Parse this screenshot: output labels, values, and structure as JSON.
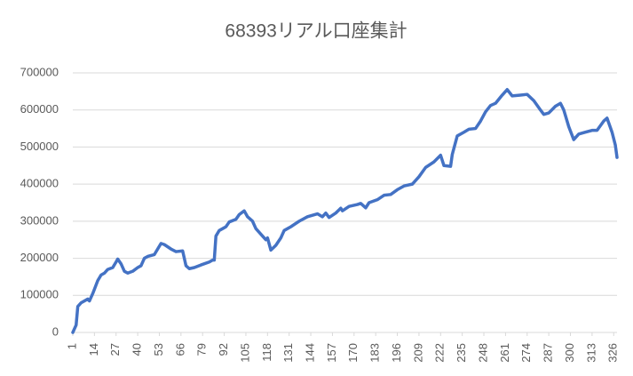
{
  "chart_data": {
    "type": "line",
    "title": "68393リアル口座集計",
    "x": [
      1,
      3,
      4,
      6,
      10,
      11,
      13,
      16,
      18,
      20,
      22,
      25,
      27,
      28,
      30,
      32,
      34,
      37,
      40,
      42,
      44,
      46,
      50,
      52,
      54,
      56,
      60,
      63,
      67,
      69,
      71,
      74,
      78,
      83,
      85,
      86,
      87,
      89,
      93,
      95,
      99,
      101,
      104,
      106,
      109,
      111,
      115,
      117,
      118,
      120,
      123,
      126,
      128,
      132,
      137,
      142,
      148,
      151,
      153,
      155,
      159,
      162,
      163,
      167,
      172,
      174,
      177,
      179,
      184,
      188,
      192,
      196,
      200,
      205,
      209,
      213,
      218,
      222,
      224,
      228,
      229,
      232,
      236,
      239,
      243,
      246,
      249,
      252,
      255,
      259,
      262,
      265,
      270,
      274,
      278,
      282,
      284,
      287,
      291,
      294,
      296,
      299,
      302,
      305,
      309,
      313,
      316,
      320,
      322,
      325,
      327,
      328
    ],
    "series": [
      {
        "color": "#4472c4",
        "values": [
          0,
          20000,
          70000,
          80000,
          90000,
          85000,
          105000,
          140000,
          155000,
          160000,
          170000,
          175000,
          190000,
          198000,
          185000,
          165000,
          160000,
          165000,
          175000,
          180000,
          200000,
          205000,
          210000,
          225000,
          240000,
          237000,
          225000,
          218000,
          220000,
          180000,
          172000,
          175000,
          182000,
          190000,
          195000,
          195000,
          260000,
          275000,
          285000,
          298000,
          305000,
          318000,
          328000,
          312000,
          300000,
          280000,
          260000,
          250000,
          255000,
          222000,
          235000,
          255000,
          275000,
          285000,
          300000,
          312000,
          320000,
          312000,
          322000,
          310000,
          322000,
          335000,
          328000,
          340000,
          345000,
          348000,
          336000,
          350000,
          358000,
          370000,
          372000,
          385000,
          395000,
          400000,
          420000,
          445000,
          460000,
          478000,
          450000,
          448000,
          480000,
          530000,
          540000,
          548000,
          550000,
          570000,
          595000,
          612000,
          618000,
          640000,
          655000,
          638000,
          640000,
          642000,
          625000,
          600000,
          588000,
          592000,
          610000,
          618000,
          600000,
          555000,
          520000,
          535000,
          540000,
          545000,
          545000,
          570000,
          578000,
          540000,
          505000,
          472000
        ]
      }
    ],
    "xlim": [
      1,
      328
    ],
    "xticks": [
      1,
      14,
      27,
      40,
      53,
      66,
      79,
      92,
      105,
      118,
      131,
      144,
      157,
      170,
      183,
      196,
      209,
      222,
      235,
      248,
      261,
      274,
      287,
      300,
      313,
      326
    ],
    "ylim": [
      0,
      700000
    ],
    "yticks": [
      0,
      100000,
      200000,
      300000,
      400000,
      500000,
      600000,
      700000
    ],
    "grid": true
  }
}
